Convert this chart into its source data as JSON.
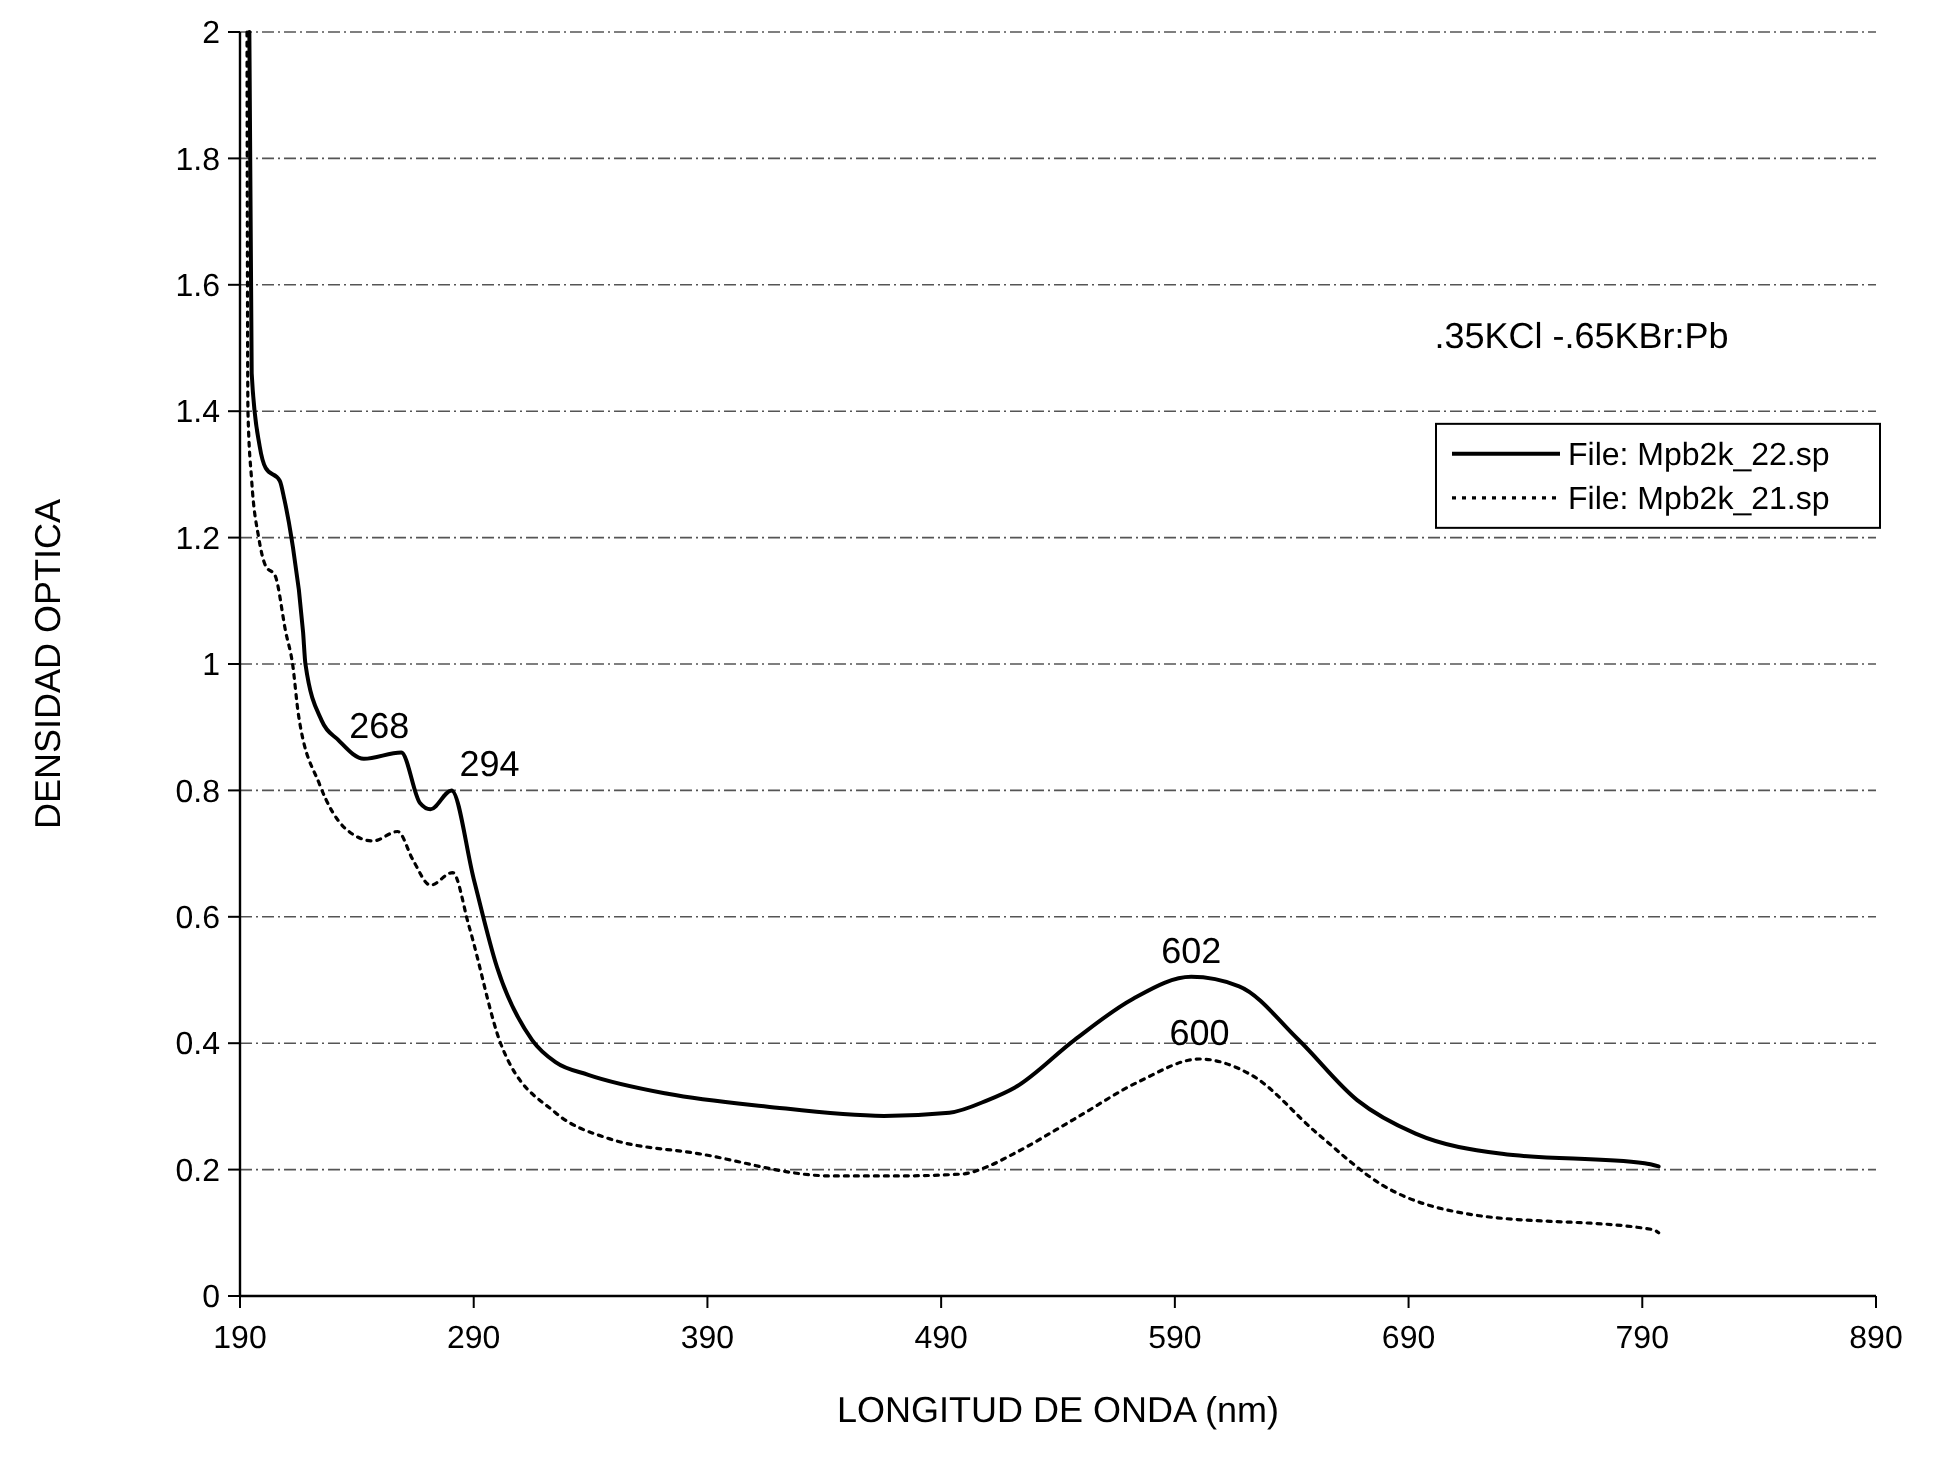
{
  "chart_data": {
    "type": "line",
    "xlabel": "LONGITUD DE ONDA (nm)",
    "ylabel": "DENSIDAD OPTICA",
    "xlim": [
      190,
      890
    ],
    "xticks": [
      190,
      290,
      390,
      490,
      590,
      690,
      790,
      890
    ],
    "ylim": [
      0,
      2
    ],
    "yticks": [
      0,
      0.2,
      0.4,
      0.6,
      0.8,
      1,
      1.2,
      1.4,
      1.6,
      1.8,
      2
    ],
    "grid": "y",
    "legend": "top right",
    "marker": "none",
    "series": [
      {
        "name": "File: Mpb2k_22.sp",
        "color": "#000000",
        "line_style": "solid",
        "x": [
          194,
          195,
          198.4,
          201,
          207,
          209,
          212,
          217,
          218,
          225,
          232,
          243,
          259,
          267,
          271.5,
          280.5,
          290,
          300,
          315,
          325,
          339,
          373,
          415,
          465.5,
          493.5,
          510,
          521.6,
          547,
          572,
          597,
          617.5,
          643,
          668,
          693,
          730,
          791,
          797
        ],
        "values": [
          2.0,
          1.46,
          1.345,
          1.31,
          1.29,
          1.26,
          1.2,
          1.05,
          1.0,
          0.91,
          0.88,
          0.85,
          0.86,
          0.78,
          0.77,
          0.8,
          0.66,
          0.52,
          0.405,
          0.37,
          0.35,
          0.32,
          0.3,
          0.285,
          0.29,
          0.31,
          0.33,
          0.405,
          0.47,
          0.505,
          0.49,
          0.405,
          0.31,
          0.257,
          0.225,
          0.21,
          0.205
        ]
      },
      {
        "name": "File: Mpb2k_21.sp",
        "color": "#000000",
        "line_style": "dotted",
        "x": [
          193,
          193.4,
          195,
          198,
          201,
          205,
          209.6,
          212.5,
          215,
          224,
          235,
          247,
          257.5,
          264,
          271.5,
          281,
          288,
          302,
          325,
          347,
          386.6,
          443,
          471,
          499,
          510,
          521,
          547,
          575,
          600.6,
          622.6,
          651,
          679,
          715,
          794.6,
          797
        ],
        "values": [
          2.0,
          1.4,
          1.29,
          1.2,
          1.155,
          1.14,
          1.05,
          1.0,
          0.92,
          0.81,
          0.74,
          0.72,
          0.735,
          0.69,
          0.65,
          0.67,
          0.585,
          0.395,
          0.29,
          0.25,
          0.225,
          0.19,
          0.19,
          0.193,
          0.205,
          0.225,
          0.28,
          0.34,
          0.375,
          0.35,
          0.257,
          0.175,
          0.13,
          0.105,
          0.1
        ]
      }
    ],
    "annotations": [
      ".35KCl -.65KBr:Pb",
      {
        "text": "268",
        "x": 259,
        "y": 0.86
      },
      {
        "text": "294",
        "x": 280.5,
        "y": 0.8
      },
      {
        "text": "602",
        "x": 597,
        "y": 0.505
      },
      {
        "text": "600",
        "x": 600.6,
        "y": 0.375
      }
    ]
  }
}
